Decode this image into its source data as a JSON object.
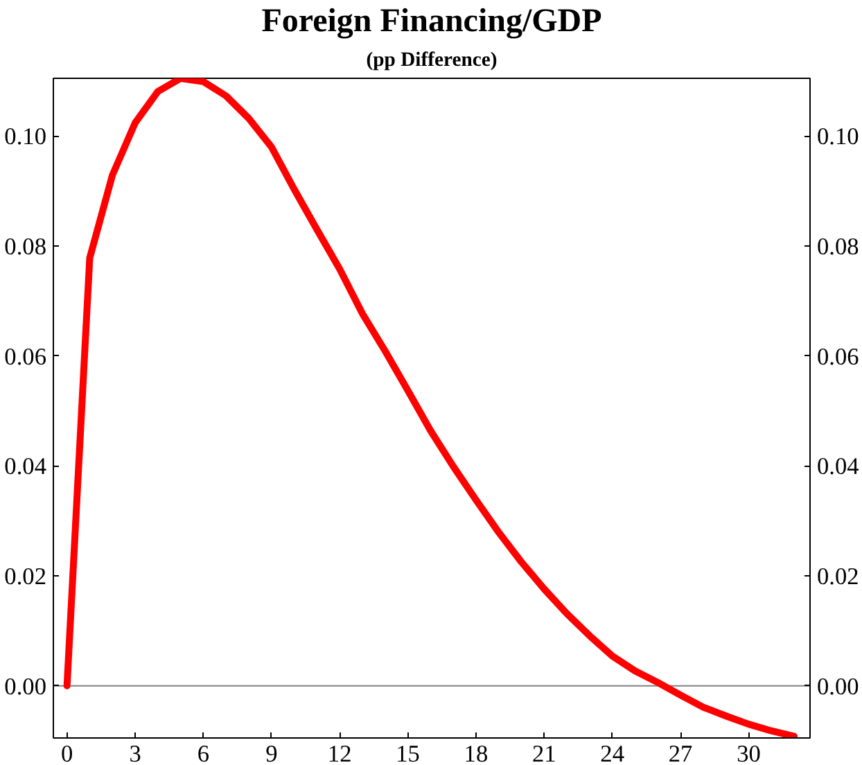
{
  "chart_data": {
    "type": "line",
    "title": "Foreign Financing/GDP",
    "subtitle": "(pp Difference)",
    "x": [
      0,
      1,
      2,
      3,
      4,
      5,
      6,
      7,
      8,
      9,
      10,
      11,
      12,
      13,
      14,
      15,
      16,
      17,
      18,
      19,
      20,
      21,
      22,
      23,
      24,
      25,
      26,
      27,
      28,
      29,
      30,
      31,
      32
    ],
    "series": [
      {
        "color": "#ff0000",
        "values": [
          0,
          0.0778,
          0.0929,
          0.1024,
          0.1081,
          0.1105,
          0.1099,
          0.1073,
          0.1032,
          0.098,
          0.0903,
          0.083,
          0.0758,
          0.0677,
          0.0609,
          0.0537,
          0.0464,
          0.0399,
          0.0338,
          0.0279,
          0.0225,
          0.0176,
          0.0131,
          0.0091,
          0.0054,
          0.0027,
          0.0006,
          -0.0017,
          -0.0039,
          -0.0055,
          -0.007,
          -0.0082,
          -0.0092
        ]
      }
    ],
    "xlim": [
      -0.6,
      32.7
    ],
    "ylim": [
      -0.0095,
      0.1105
    ],
    "y2lim": [
      -0.0095,
      0.1105
    ],
    "xticks": [
      0,
      3,
      6,
      9,
      12,
      15,
      18,
      21,
      24,
      27,
      30
    ],
    "yticks": [
      {
        "value": 0,
        "label": "0.00"
      },
      {
        "value": 0.02,
        "label": "0.02"
      },
      {
        "value": 0.04,
        "label": "0.04"
      },
      {
        "value": 0.06,
        "label": "0.06"
      },
      {
        "value": 0.08,
        "label": "0.08"
      },
      {
        "value": 0.1,
        "label": "0.10"
      }
    ],
    "y2ticks": [
      {
        "value": 0,
        "label": "0.00"
      },
      {
        "value": 0.02,
        "label": "0.02"
      },
      {
        "value": 0.04,
        "label": "0.04"
      },
      {
        "value": 0.06,
        "label": "0.06"
      },
      {
        "value": 0.08,
        "label": "0.08"
      },
      {
        "value": 0.1,
        "label": "0.10"
      }
    ],
    "ref_lines": [
      {
        "axis": "y",
        "value": 0,
        "color": "#808080"
      }
    ],
    "grid": false,
    "marker": "none",
    "line_style": "solid"
  }
}
